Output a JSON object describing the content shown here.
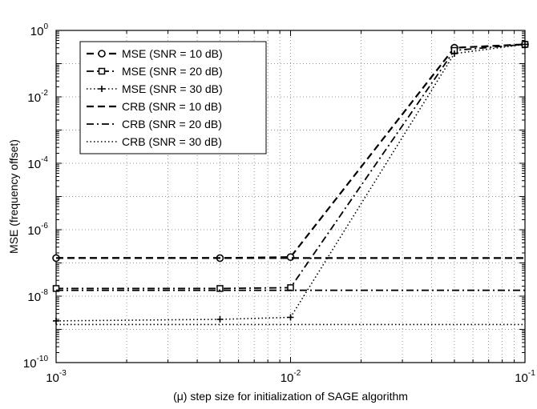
{
  "chart_data": {
    "type": "line",
    "title": "",
    "xlabel": "(μ) step size for initialization of SAGE algorithm",
    "ylabel": "MSE (frequency offset)",
    "xscale": "log",
    "yscale": "log",
    "xlim": [
      0.001,
      0.1
    ],
    "ylim": [
      1e-10,
      1
    ],
    "grid": true,
    "legend_position": "top-left",
    "x_ticks": [
      {
        "value": 0.001,
        "base": "10",
        "exp": "-3"
      },
      {
        "value": 0.01,
        "base": "10",
        "exp": "-2"
      },
      {
        "value": 0.1,
        "base": "10",
        "exp": "-1"
      }
    ],
    "y_ticks": [
      {
        "value": 1e-10,
        "base": "10",
        "exp": "-10"
      },
      {
        "value": 1e-08,
        "base": "10",
        "exp": "-8"
      },
      {
        "value": 1e-06,
        "base": "10",
        "exp": "-6"
      },
      {
        "value": 0.0001,
        "base": "10",
        "exp": "-4"
      },
      {
        "value": 0.01,
        "base": "10",
        "exp": "-2"
      },
      {
        "value": 1,
        "base": "10",
        "exp": "0"
      }
    ],
    "series": [
      {
        "name": "MSE (SNR = 10 dB)",
        "style": "dashed",
        "marker": "circle",
        "x": [
          0.001,
          0.005,
          0.01,
          0.05,
          0.1
        ],
        "y": [
          1.4e-07,
          1.4e-07,
          1.5e-07,
          0.3,
          0.38
        ]
      },
      {
        "name": "MSE (SNR = 20 dB)",
        "style": "dashdot",
        "marker": "square",
        "x": [
          0.001,
          0.005,
          0.01,
          0.05,
          0.1
        ],
        "y": [
          1.7e-08,
          1.7e-08,
          1.8e-08,
          0.25,
          0.38
        ]
      },
      {
        "name": "MSE (SNR = 30 dB)",
        "style": "dotted",
        "marker": "plus",
        "x": [
          0.001,
          0.005,
          0.01,
          0.05,
          0.1
        ],
        "y": [
          1.8e-09,
          2e-09,
          2.3e-09,
          0.2,
          0.38
        ]
      },
      {
        "name": "CRB (SNR = 10 dB)",
        "style": "dashed",
        "marker": "none",
        "x": [
          0.001,
          0.1
        ],
        "y": [
          1.4e-07,
          1.4e-07
        ]
      },
      {
        "name": "CRB (SNR = 20 dB)",
        "style": "dashdot",
        "marker": "none",
        "x": [
          0.001,
          0.1
        ],
        "y": [
          1.5e-08,
          1.5e-08
        ]
      },
      {
        "name": "CRB (SNR = 30 dB)",
        "style": "dotted",
        "marker": "none",
        "x": [
          0.001,
          0.1
        ],
        "y": [
          1.4e-09,
          1.4e-09
        ]
      }
    ]
  }
}
